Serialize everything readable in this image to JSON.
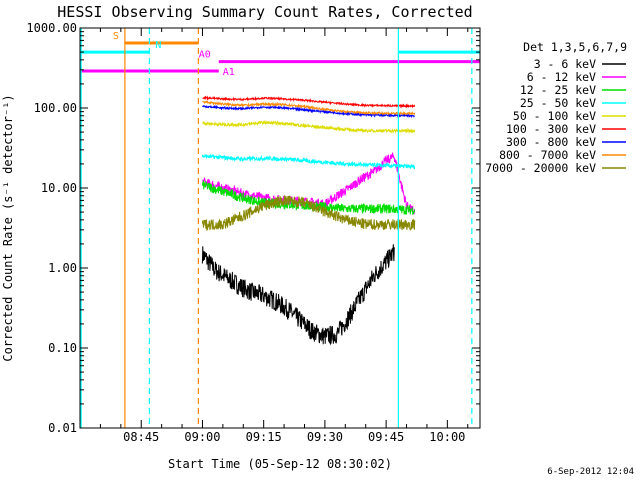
{
  "chart_data": {
    "type": "line",
    "title": "HESSI Observing Summary Count Rates, Corrected",
    "xlabel": "Start Time (05-Sep-12 08:30:02)",
    "ylabel": "Corrected Count Rate (s⁻¹ detector⁻¹)",
    "y_scale": "log",
    "ylim": [
      0.01,
      1000
    ],
    "xlim": [
      "08:30",
      "10:08"
    ],
    "x_ticks": [
      "08:45",
      "09:00",
      "09:15",
      "09:30",
      "09:45",
      "10:00"
    ],
    "y_ticks": [
      "0.01",
      "0.10",
      "1.00",
      "10.00",
      "100.00",
      "1000.00"
    ],
    "timestamp": "6-Sep-2012 12:04",
    "legend": {
      "title": "Det 1,3,5,6,7,9",
      "placement": "right",
      "entries": [
        {
          "label": "3 - 6 keV",
          "color": "#000000"
        },
        {
          "label": "6 - 12 keV",
          "color": "#ff00ff"
        },
        {
          "label": "12 - 25 keV",
          "color": "#00dd00"
        },
        {
          "label": "25 - 50 keV",
          "color": "#00ffff"
        },
        {
          "label": "50 - 100 keV",
          "color": "#dddd00"
        },
        {
          "label": "100 - 300 keV",
          "color": "#ff0000"
        },
        {
          "label": "300 - 800 keV",
          "color": "#0000ff"
        },
        {
          "label": "800 - 7000 keV",
          "color": "#ff8800"
        },
        {
          "label": "7000 - 20000 keV",
          "color": "#888800"
        }
      ]
    },
    "flags": [
      {
        "label": "S",
        "color": "#ff8800",
        "x_start": "08:41",
        "x_end": "08:59",
        "y": 650
      },
      {
        "label": "N",
        "color": "#00ffff",
        "x_start": "08:30",
        "x_end": "08:47",
        "y": 500
      },
      {
        "label": "N",
        "color": "#00ffff",
        "x_start": "09:48",
        "x_end": "10:08",
        "y": 500
      },
      {
        "label": "A0",
        "color": "#ff00ff",
        "x_start": "09:04",
        "x_end": "10:08",
        "y": 380
      },
      {
        "label": "A1",
        "color": "#ff00ff",
        "x_start": "08:30",
        "x_end": "09:04",
        "y": 290
      }
    ],
    "markers": [
      {
        "x": "08:41",
        "color": "#ff8800",
        "style": "solid"
      },
      {
        "x": "08:47",
        "color": "#00ffff",
        "style": "dashed"
      },
      {
        "x": "08:59",
        "color": "#ff8800",
        "style": "dashed"
      },
      {
        "x": "09:48",
        "color": "#00ffff",
        "style": "solid"
      },
      {
        "x": "10:06",
        "color": "#00ffff",
        "style": "dashed"
      }
    ],
    "series": [
      {
        "name": "3 - 6 keV",
        "color": "#000000",
        "x": [
          "09:00",
          "09:03",
          "09:06",
          "09:09",
          "09:12",
          "09:15",
          "09:18",
          "09:21",
          "09:24",
          "09:27",
          "09:30",
          "09:33",
          "09:36",
          "09:39",
          "09:42",
          "09:45",
          "09:47"
        ],
        "y": [
          1.5,
          0.95,
          0.75,
          0.6,
          0.5,
          0.45,
          0.38,
          0.3,
          0.22,
          0.16,
          0.14,
          0.15,
          0.25,
          0.45,
          0.8,
          1.2,
          1.6
        ]
      },
      {
        "name": "6 - 12 keV",
        "color": "#ff00ff",
        "x": [
          "09:00",
          "09:05",
          "09:10",
          "09:15",
          "09:20",
          "09:25",
          "09:30",
          "09:33",
          "09:36",
          "09:39",
          "09:42",
          "09:45",
          "09:47",
          "09:50",
          "09:52"
        ],
        "y": [
          12,
          10,
          8.5,
          7.5,
          7,
          6.8,
          6.3,
          8,
          10,
          13,
          16,
          22,
          25,
          6,
          5
        ]
      },
      {
        "name": "12 - 25 keV",
        "color": "#00dd00",
        "x": [
          "09:00",
          "09:05",
          "09:10",
          "09:15",
          "09:20",
          "09:25",
          "09:30",
          "09:35",
          "09:40",
          "09:45",
          "09:52"
        ],
        "y": [
          11,
          9,
          7.5,
          6.5,
          6.3,
          6.0,
          5.8,
          5.5,
          5.5,
          5.5,
          5.3
        ]
      },
      {
        "name": "25 - 50 keV",
        "color": "#00ffff",
        "x": [
          "09:00",
          "09:05",
          "09:10",
          "09:15",
          "09:20",
          "09:25",
          "09:30",
          "09:35",
          "09:40",
          "09:45",
          "09:52"
        ],
        "y": [
          25,
          24,
          23,
          23.5,
          23,
          22,
          21,
          20,
          19.5,
          19,
          18.5
        ]
      },
      {
        "name": "50 - 100 keV",
        "color": "#dddd00",
        "x": [
          "09:00",
          "09:05",
          "09:10",
          "09:15",
          "09:20",
          "09:25",
          "09:30",
          "09:35",
          "09:40",
          "09:45",
          "09:52"
        ],
        "y": [
          65,
          62,
          62,
          66,
          64,
          60,
          57,
          54,
          52,
          52,
          52
        ]
      },
      {
        "name": "100 - 300 keV",
        "color": "#ff0000",
        "x": [
          "09:00",
          "09:05",
          "09:10",
          "09:15",
          "09:20",
          "09:25",
          "09:30",
          "09:35",
          "09:40",
          "09:45",
          "09:52"
        ],
        "y": [
          135,
          130,
          128,
          133,
          130,
          125,
          118,
          112,
          108,
          107,
          106
        ]
      },
      {
        "name": "300 - 800 keV",
        "color": "#0000ff",
        "x": [
          "09:00",
          "09:05",
          "09:10",
          "09:15",
          "09:20",
          "09:25",
          "09:30",
          "09:35",
          "09:40",
          "09:45",
          "09:52"
        ],
        "y": [
          105,
          100,
          98,
          103,
          100,
          95,
          90,
          85,
          82,
          81,
          80
        ]
      },
      {
        "name": "800 - 7000 keV",
        "color": "#ff8800",
        "x": [
          "09:00",
          "09:05",
          "09:10",
          "09:15",
          "09:20",
          "09:25",
          "09:30",
          "09:35",
          "09:40",
          "09:45",
          "09:52"
        ],
        "y": [
          120,
          112,
          108,
          112,
          110,
          104,
          96,
          90,
          87,
          86,
          85
        ]
      },
      {
        "name": "7000 - 20000 keV",
        "color": "#888800",
        "x": [
          "09:00",
          "09:05",
          "09:10",
          "09:15",
          "09:20",
          "09:25",
          "09:30",
          "09:35",
          "09:40",
          "09:45",
          "09:52"
        ],
        "y": [
          3.5,
          3.5,
          4.5,
          6,
          7,
          6.5,
          5,
          4,
          3.5,
          3.5,
          3.5
        ]
      }
    ]
  }
}
